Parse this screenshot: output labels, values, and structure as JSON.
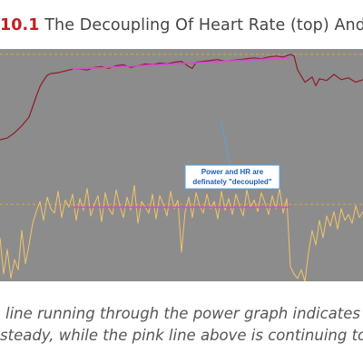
{
  "figure": {
    "number": "10.1",
    "title": "The Decoupling Of Heart Rate (top) And Pow"
  },
  "caption": {
    "line1": "line running through the power graph indicates p",
    "line2": "steady, while the pink line above is continuing to go"
  },
  "colors": {
    "plot_background": "#8c8c8c",
    "heart_rate_line": "#8b1c2c",
    "power_line": "#f2c46a",
    "trend_line": "#d94bd0",
    "reference_line": "#e8a23a",
    "annotation_border": "#5aa3e0",
    "annotation_text": "#1f5fb8",
    "figure_number": "#c21e25"
  },
  "chart_data": {
    "type": "line",
    "grid": false,
    "legend": "none",
    "annotation": {
      "lines": [
        "Power and HR are",
        "definately \"decoupled\""
      ]
    },
    "series": [
      {
        "id": "heart_rate",
        "x": [
          0,
          2,
          4,
          6,
          8,
          9,
          10,
          11,
          12,
          13,
          14,
          16,
          18,
          20,
          22,
          24,
          26,
          28,
          30,
          32,
          34,
          36,
          38,
          40,
          42,
          44,
          46,
          48,
          50,
          52,
          53,
          54,
          56,
          58,
          60,
          62,
          64,
          66,
          68,
          70,
          72,
          74,
          76,
          78,
          80,
          81,
          82,
          84,
          86,
          87,
          88,
          90,
          92,
          94,
          96,
          98,
          100
        ],
        "y": [
          0,
          2,
          8,
          16,
          26,
          38,
          50,
          61,
          68,
          74,
          76,
          77,
          79,
          81,
          81,
          80,
          83,
          84,
          82,
          85,
          86,
          83,
          85,
          87,
          86,
          88,
          87,
          89,
          90,
          84,
          82,
          89,
          90,
          91,
          92,
          90,
          91,
          92,
          93,
          94,
          93,
          95,
          96,
          95,
          98,
          96,
          80,
          66,
          72,
          62,
          70,
          68,
          75,
          69,
          71,
          66,
          69
        ]
      },
      {
        "id": "power",
        "x": [
          0,
          1,
          2,
          3,
          4,
          5,
          6,
          7,
          8,
          9,
          10,
          11,
          12,
          13,
          14,
          15,
          16,
          17,
          18,
          19,
          20,
          21,
          22,
          23,
          24,
          25,
          26,
          27,
          28,
          29,
          30,
          31,
          32,
          33,
          34,
          35,
          36,
          37,
          38,
          39,
          40,
          41,
          42,
          43,
          44,
          45,
          46,
          47,
          48,
          49,
          50,
          51,
          52,
          53,
          54,
          55,
          56,
          57,
          58,
          59,
          60,
          61,
          62,
          63,
          64,
          65,
          66,
          67,
          68,
          69,
          70,
          71,
          72,
          73,
          74,
          75,
          76,
          77,
          78,
          79,
          80,
          81,
          82,
          83,
          84,
          85,
          86,
          87,
          88,
          89,
          90,
          91,
          92,
          93,
          94,
          95,
          96,
          97,
          98,
          99,
          100
        ],
        "y": [
          30,
          5,
          22,
          2,
          15,
          8,
          35,
          12,
          25,
          40,
          48,
          55,
          42,
          58,
          50,
          47,
          62,
          44,
          56,
          51,
          60,
          42,
          57,
          49,
          64,
          45,
          53,
          59,
          41,
          61,
          50,
          46,
          63,
          52,
          44,
          58,
          49,
          66,
          40,
          55,
          51,
          47,
          60,
          43,
          59,
          53,
          45,
          62,
          50,
          56,
          20,
          48,
          58,
          44,
          61,
          52,
          47,
          60,
          50,
          55,
          43,
          62,
          49,
          57,
          46,
          60,
          52,
          45,
          63,
          51,
          56,
          48,
          61,
          54,
          46,
          59,
          50,
          64,
          47,
          57,
          10,
          5,
          2,
          8,
          0,
          20,
          35,
          25,
          42,
          30,
          45,
          38,
          48,
          36,
          50,
          42,
          46,
          40,
          52,
          44,
          48
        ]
      },
      {
        "id": "hr_trend",
        "x": [
          20,
          80
        ],
        "y": [
          81,
          94
        ]
      },
      {
        "id": "power_trend",
        "x": [
          20,
          80
        ],
        "y": [
          51,
          51
        ]
      },
      {
        "id": "hr_reference",
        "x": [
          0,
          100
        ],
        "y": [
          98,
          98
        ]
      },
      {
        "id": "power_reference",
        "x": [
          0,
          100
        ],
        "y": [
          53,
          53
        ]
      }
    ]
  }
}
